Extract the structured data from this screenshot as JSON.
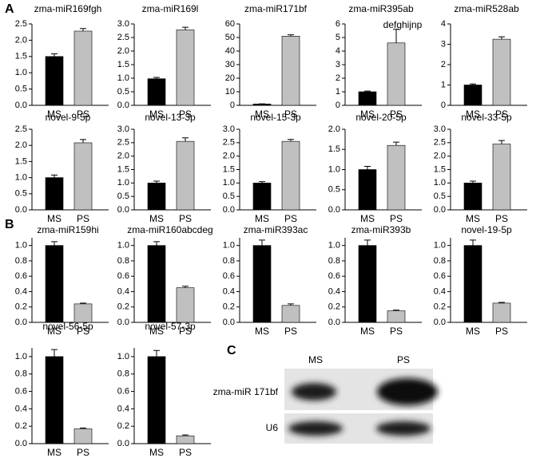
{
  "panel_labels": [
    "A",
    "B",
    "C"
  ],
  "chart_data": [
    {
      "type": "bar",
      "title": "zma-miR169fgh",
      "categories": [
        "MS",
        "PS"
      ],
      "values": [
        1.5,
        2.28
      ],
      "errors": [
        0.08,
        0.08
      ],
      "colors": [
        "#000000",
        "#c0c0c0"
      ],
      "ylim": [
        0,
        2.5
      ],
      "yticks": [
        {
          "value": 0,
          "label": "0.0"
        },
        0.5,
        {
          "value": 1,
          "label": "1.0"
        },
        1.5,
        {
          "value": 2,
          "label": "2.0"
        },
        2.5
      ]
    },
    {
      "type": "bar",
      "title": "zma-miR169l",
      "categories": [
        "MS",
        "PS"
      ],
      "values": [
        0.98,
        2.78
      ],
      "errors": [
        0.05,
        0.1
      ],
      "colors": [
        "#000000",
        "#c0c0c0"
      ],
      "ylim": [
        0,
        3
      ],
      "yticks": [
        {
          "value": 0,
          "label": "0.0"
        },
        0.5,
        {
          "value": 1,
          "label": "1.0"
        },
        1.5,
        {
          "value": 2,
          "label": "2.0"
        },
        2.5,
        {
          "value": 3,
          "label": "3.0"
        }
      ]
    },
    {
      "type": "bar",
      "title": "zma-miR171bf",
      "categories": [
        "MS",
        "PS"
      ],
      "values": [
        1,
        51
      ],
      "errors": [
        0.1,
        1
      ],
      "colors": [
        "#000000",
        "#c0c0c0"
      ],
      "ylim": [
        0,
        60
      ],
      "yticks": [
        0,
        10,
        20,
        30,
        40,
        50,
        60
      ]
    },
    {
      "type": "bar",
      "title": "zma-miR395ab",
      "subtitle": "defghijnp",
      "categories": [
        "MS",
        "PS"
      ],
      "values": [
        1,
        4.6
      ],
      "errors": [
        0.05,
        1
      ],
      "colors": [
        "#000000",
        "#c0c0c0"
      ],
      "ylim": [
        0,
        6
      ],
      "yticks": [
        0,
        1,
        2,
        3,
        4,
        5,
        6
      ]
    },
    {
      "type": "bar",
      "title": "zma-miR528ab",
      "categories": [
        "MS",
        "PS"
      ],
      "values": [
        1,
        3.25
      ],
      "errors": [
        0.05,
        0.12
      ],
      "colors": [
        "#000000",
        "#c0c0c0"
      ],
      "ylim": [
        0,
        4
      ],
      "yticks": [
        0,
        1,
        2,
        3,
        4
      ]
    },
    {
      "type": "bar",
      "title": "novel-9-5p",
      "categories": [
        "MS",
        "PS"
      ],
      "values": [
        1,
        2.08
      ],
      "errors": [
        0.08,
        0.1
      ],
      "colors": [
        "#000000",
        "#c0c0c0"
      ],
      "ylim": [
        0,
        2.5
      ],
      "yticks": [
        {
          "value": 0,
          "label": "0.0"
        },
        0.5,
        {
          "value": 1,
          "label": "1.0"
        },
        1.5,
        {
          "value": 2,
          "label": "2.0"
        },
        2.5
      ]
    },
    {
      "type": "bar",
      "title": "novel-13-3p",
      "categories": [
        "MS",
        "PS"
      ],
      "values": [
        1,
        2.55
      ],
      "errors": [
        0.07,
        0.13
      ],
      "colors": [
        "#000000",
        "#c0c0c0"
      ],
      "ylim": [
        0,
        3
      ],
      "yticks": [
        {
          "value": 0,
          "label": "0.0"
        },
        0.5,
        {
          "value": 1,
          "label": "1.0"
        },
        1.5,
        {
          "value": 2,
          "label": "2.0"
        },
        2.5,
        {
          "value": 3,
          "label": "3.0"
        }
      ]
    },
    {
      "type": "bar",
      "title": "novel-15-3p",
      "categories": [
        "MS",
        "PS"
      ],
      "values": [
        1,
        2.55
      ],
      "errors": [
        0.05,
        0.07
      ],
      "colors": [
        "#000000",
        "#c0c0c0"
      ],
      "ylim": [
        0,
        3
      ],
      "yticks": [
        {
          "value": 0,
          "label": "0.0"
        },
        0.5,
        {
          "value": 1,
          "label": "1.0"
        },
        1.5,
        {
          "value": 2,
          "label": "2.0"
        },
        2.5,
        {
          "value": 3,
          "label": "3.0"
        }
      ]
    },
    {
      "type": "bar",
      "title": "novel-20-5p",
      "categories": [
        "MS",
        "PS"
      ],
      "values": [
        1,
        1.6
      ],
      "errors": [
        0.08,
        0.08
      ],
      "colors": [
        "#000000",
        "#c0c0c0"
      ],
      "ylim": [
        0,
        2
      ],
      "yticks": [
        {
          "value": 0,
          "label": "0.0"
        },
        0.5,
        {
          "value": 1,
          "label": "1.0"
        },
        1.5,
        {
          "value": 2,
          "label": "2.0"
        }
      ]
    },
    {
      "type": "bar",
      "title": "novel-33-5p",
      "categories": [
        "MS",
        "PS"
      ],
      "values": [
        1,
        2.45
      ],
      "errors": [
        0.07,
        0.13
      ],
      "colors": [
        "#000000",
        "#c0c0c0"
      ],
      "ylim": [
        0,
        3
      ],
      "yticks": [
        {
          "value": 0,
          "label": "0.0"
        },
        0.5,
        {
          "value": 1,
          "label": "1.0"
        },
        1.5,
        {
          "value": 2,
          "label": "2.0"
        },
        2.5,
        {
          "value": 3,
          "label": "3.0"
        }
      ]
    },
    {
      "type": "bar",
      "title": "zma-miR159hi",
      "categories": [
        "MS",
        "PS"
      ],
      "values": [
        1,
        0.24
      ],
      "errors": [
        0.05,
        0.01
      ],
      "colors": [
        "#000000",
        "#c0c0c0"
      ],
      "ylim": [
        0,
        1.1
      ],
      "yticks": [
        {
          "value": 0,
          "label": "0.0"
        },
        0.2,
        0.4,
        0.6,
        0.8,
        {
          "value": 1,
          "label": "1.0"
        }
      ]
    },
    {
      "type": "bar",
      "title": "zma-miR160abcdeg",
      "categories": [
        "MS",
        "PS"
      ],
      "values": [
        1,
        0.45
      ],
      "errors": [
        0.05,
        0.02
      ],
      "colors": [
        "#000000",
        "#c0c0c0"
      ],
      "ylim": [
        0,
        1.1
      ],
      "yticks": [
        {
          "value": 0,
          "label": "0.0"
        },
        0.2,
        0.4,
        0.6,
        0.8,
        {
          "value": 1,
          "label": "1.0"
        }
      ]
    },
    {
      "type": "bar",
      "title": "zma-miR393ac",
      "categories": [
        "MS",
        "PS"
      ],
      "values": [
        1,
        0.22
      ],
      "errors": [
        0.07,
        0.02
      ],
      "colors": [
        "#000000",
        "#c0c0c0"
      ],
      "ylim": [
        0,
        1.1
      ],
      "yticks": [
        {
          "value": 0,
          "label": "0.0"
        },
        0.2,
        0.4,
        0.6,
        0.8,
        {
          "value": 1,
          "label": "1.0"
        }
      ]
    },
    {
      "type": "bar",
      "title": "zma-miR393b",
      "categories": [
        "MS",
        "PS"
      ],
      "values": [
        1,
        0.15
      ],
      "errors": [
        0.07,
        0.01
      ],
      "colors": [
        "#000000",
        "#c0c0c0"
      ],
      "ylim": [
        0,
        1.1
      ],
      "yticks": [
        {
          "value": 0,
          "label": "0.0"
        },
        0.2,
        0.4,
        0.6,
        0.8,
        {
          "value": 1,
          "label": "1.0"
        }
      ]
    },
    {
      "type": "bar",
      "title": "novel-19-5p",
      "categories": [
        "MS",
        "PS"
      ],
      "values": [
        1,
        0.25
      ],
      "errors": [
        0.07,
        0.01
      ],
      "colors": [
        "#000000",
        "#c0c0c0"
      ],
      "ylim": [
        0,
        1.1
      ],
      "yticks": [
        {
          "value": 0,
          "label": "0.0"
        },
        0.2,
        0.4,
        0.6,
        0.8,
        {
          "value": 1,
          "label": "1.0"
        }
      ]
    },
    {
      "type": "bar",
      "title": "novel-56-5p",
      "categories": [
        "MS",
        "PS"
      ],
      "values": [
        1,
        0.17
      ],
      "errors": [
        0.08,
        0.01
      ],
      "colors": [
        "#000000",
        "#c0c0c0"
      ],
      "ylim": [
        0,
        1.1
      ],
      "yticks": [
        {
          "value": 0,
          "label": "0.0"
        },
        0.2,
        0.4,
        0.6,
        0.8,
        {
          "value": 1,
          "label": "1.0"
        }
      ]
    },
    {
      "type": "bar",
      "title": "novel-57-3p",
      "categories": [
        "MS",
        "PS"
      ],
      "values": [
        1,
        0.09
      ],
      "errors": [
        0.07,
        0.01
      ],
      "colors": [
        "#000000",
        "#c0c0c0"
      ],
      "ylim": [
        0,
        1.1
      ],
      "yticks": [
        {
          "value": 0,
          "label": "0.0"
        },
        0.2,
        0.4,
        0.6,
        0.8,
        {
          "value": 1,
          "label": "1.0"
        }
      ]
    }
  ],
  "blot": {
    "columns": [
      "MS",
      "PS"
    ],
    "rows": [
      "zma-miR 171bf",
      "U6"
    ]
  }
}
